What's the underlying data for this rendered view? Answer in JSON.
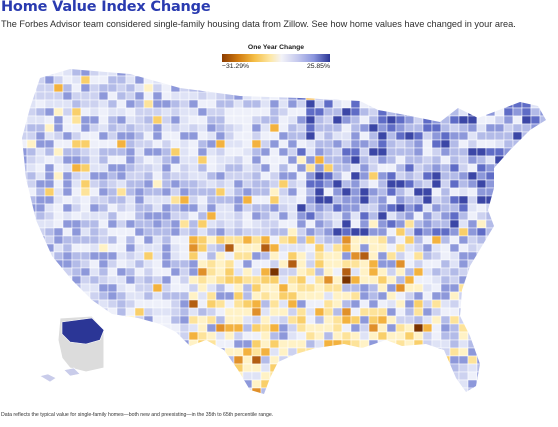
{
  "header": {
    "title": "Home Value Index Change",
    "subtitle": "The Forbes Advisor team considered single-family housing data from Zillow. See how home values have changed in your area."
  },
  "legend": {
    "title": "One Year Change",
    "min_label": "−31.29%",
    "max_label": "25.85%",
    "min_value": -31.29,
    "max_value": 25.85
  },
  "colors": {
    "title": "#2a3bb0",
    "scale_decline_strong": "#8c3c00",
    "scale_decline": "#f5be45",
    "scale_neutral": "#f3f3f8",
    "scale_growth": "#8a95dd",
    "scale_growth_strong": "#2b3696",
    "no_data": "#d9d9d9"
  },
  "footnote": "Data reflects the typical value for single-family homes—both new and preexisting—in the 35th to 65th percentile range."
}
